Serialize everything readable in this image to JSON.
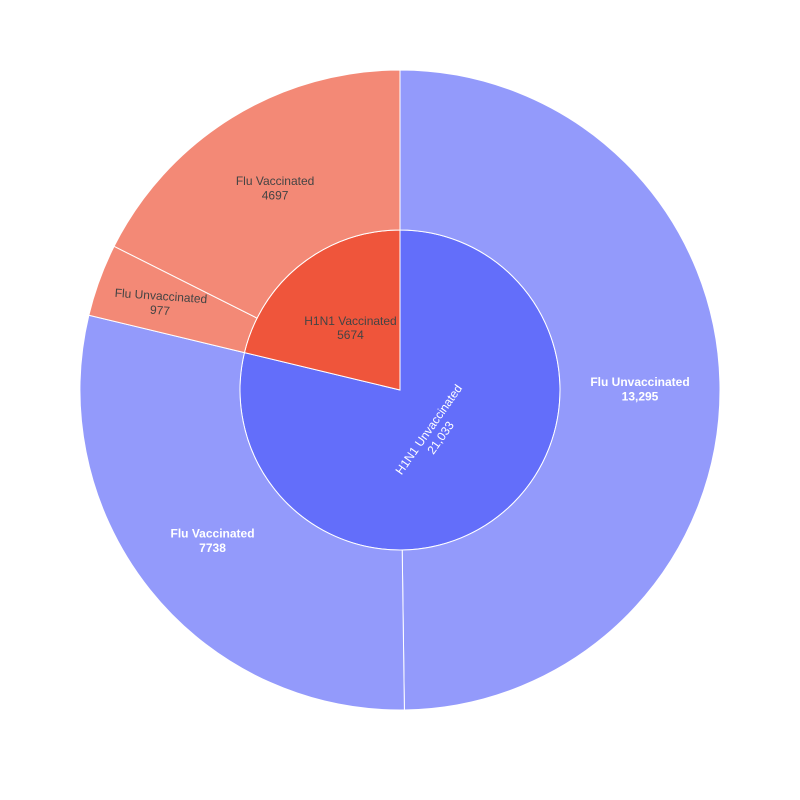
{
  "chart_data": {
    "type": "sunburst",
    "title": "",
    "nodes": [
      {
        "id": "h1n1-unvaccinated",
        "label": "H1N1 Unvaccinated",
        "value": 21033,
        "value_text": "21,033",
        "color": "#636efa",
        "label_color": "#ffffff",
        "children": [
          {
            "id": "h1n1-unvaccinated-flu-unvaccinated",
            "label": "Flu Unvaccinated",
            "value": 13295,
            "value_text": "13,295",
            "color": "#939afb",
            "label_color": "#ffffff"
          },
          {
            "id": "h1n1-unvaccinated-flu-vaccinated",
            "label": "Flu Vaccinated",
            "value": 7738,
            "value_text": "7738",
            "color": "#939afb",
            "label_color": "#ffffff"
          }
        ]
      },
      {
        "id": "h1n1-vaccinated",
        "label": "H1N1 Vaccinated",
        "value": 5674,
        "value_text": "5674",
        "color": "#ef553b",
        "label_color": "#444444",
        "children": [
          {
            "id": "h1n1-vaccinated-flu-unvaccinated",
            "label": "Flu Unvaccinated",
            "value": 977,
            "value_text": "977",
            "color": "#f38976",
            "label_color": "#444444"
          },
          {
            "id": "h1n1-vaccinated-flu-vaccinated",
            "label": "Flu Vaccinated",
            "value": 4697,
            "value_text": "4697",
            "color": "#f38976",
            "label_color": "#444444"
          }
        ]
      }
    ]
  }
}
